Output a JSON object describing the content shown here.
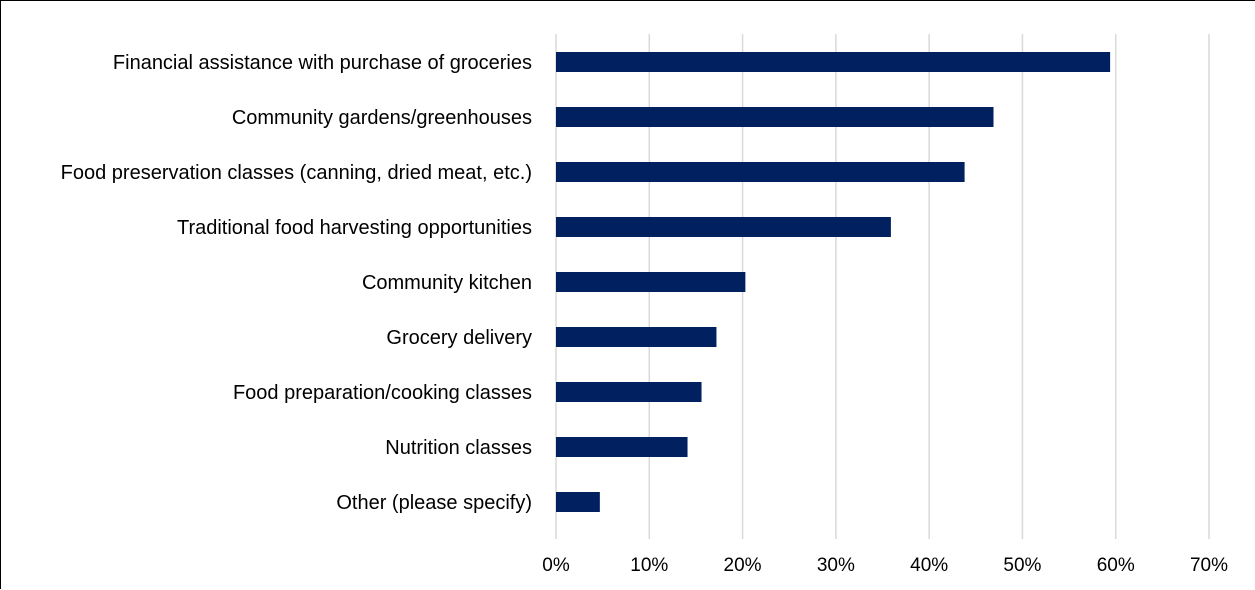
{
  "chart_data": {
    "type": "bar",
    "orientation": "horizontal",
    "categories": [
      "Financial assistance with purchase of groceries",
      "Community gardens/greenhouses",
      "Food preservation classes (canning, dried meat, etc.)",
      "Traditional food harvesting opportunities",
      "Community kitchen",
      "Grocery delivery",
      "Food preparation/cooking classes",
      "Nutrition classes",
      "Other (please specify)"
    ],
    "values": [
      59.4,
      46.9,
      43.8,
      35.9,
      20.3,
      17.2,
      15.6,
      14.1,
      4.7
    ],
    "title": "",
    "xlabel": "",
    "ylabel": "",
    "xlim": [
      0,
      70
    ],
    "x_ticks": [
      "0%",
      "10%",
      "20%",
      "30%",
      "40%",
      "50%",
      "60%",
      "70%"
    ],
    "grid": "vertical",
    "legend": "none",
    "bar_color": "#002060"
  }
}
